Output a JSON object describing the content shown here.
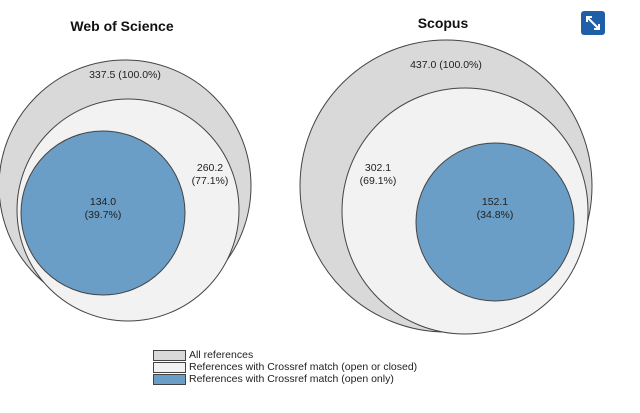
{
  "colors": {
    "all": "#d9d9d9",
    "crossref": "#f2f2f2",
    "open": "#6a9ec6",
    "stroke": "#444444",
    "accent": "#1f5fa8"
  },
  "toolbar": {
    "expand_icon": "expand-arrows-icon"
  },
  "chart_data": [
    {
      "type": "nested-circles",
      "title": "Web of Science",
      "series": [
        {
          "name": "All references",
          "value": 337.5,
          "percent": 100.0,
          "label_line1": "337.5 (100.0%)",
          "label_line2": ""
        },
        {
          "name": "References with Crossref match (open or closed)",
          "value": 260.2,
          "percent": 77.1,
          "label_line1": "260.2",
          "label_line2": "(77.1%)"
        },
        {
          "name": "References with Crossref match (open only)",
          "value": 134.0,
          "percent": 39.7,
          "label_line1": "134.0",
          "label_line2": "(39.7%)"
        }
      ]
    },
    {
      "type": "nested-circles",
      "title": "Scopus",
      "series": [
        {
          "name": "All references",
          "value": 437.0,
          "percent": 100.0,
          "label_line1": "437.0 (100.0%)",
          "label_line2": ""
        },
        {
          "name": "References with Crossref match (open or closed)",
          "value": 302.1,
          "percent": 69.1,
          "label_line1": "302.1",
          "label_line2": "(69.1%)"
        },
        {
          "name": "References with Crossref match (open only)",
          "value": 152.1,
          "percent": 34.8,
          "label_line1": "152.1",
          "label_line2": "(34.8%)"
        }
      ]
    }
  ],
  "legend": {
    "items": [
      {
        "label": "All references",
        "color_key": "all"
      },
      {
        "label": "References with Crossref match (open or closed)",
        "color_key": "crossref"
      },
      {
        "label": "References with Crossref match (open only)",
        "color_key": "open"
      }
    ]
  }
}
